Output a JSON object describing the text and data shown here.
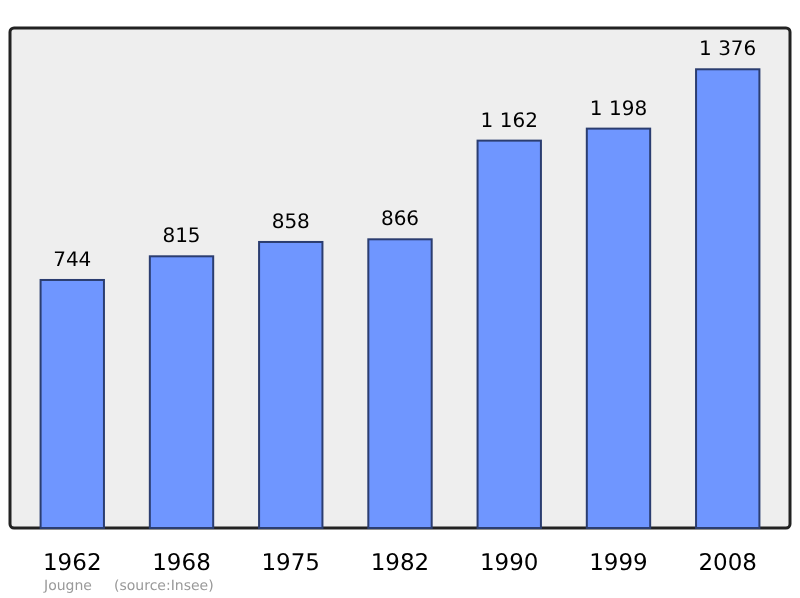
{
  "chart_data": {
    "type": "bar",
    "categories": [
      "1962",
      "1968",
      "1975",
      "1982",
      "1990",
      "1999",
      "2008"
    ],
    "values": [
      744,
      815,
      858,
      866,
      1162,
      1198,
      1376
    ],
    "value_labels": [
      "744",
      "815",
      "858",
      "866",
      "1 162",
      "1 198",
      "1 376"
    ],
    "color": "#6f96ff",
    "annotations": [
      "Jougne",
      "(source:Insee)"
    ]
  }
}
